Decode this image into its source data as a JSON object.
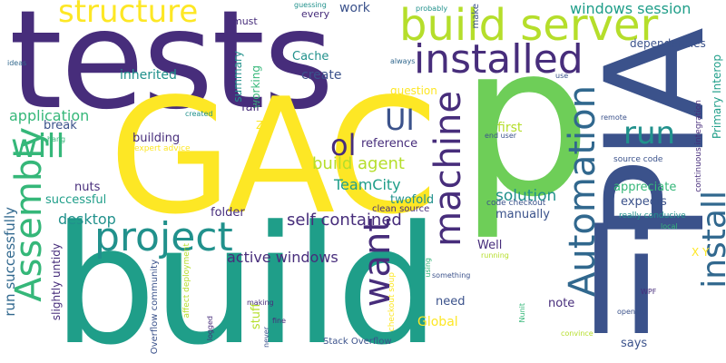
{
  "words": [
    {
      "text": "tests"
    },
    {
      "text": "build"
    },
    {
      "text": "GAC"
    },
    {
      "text": "p"
    },
    {
      "text": "PIA"
    },
    {
      "text": "li"
    },
    {
      "text": "build server"
    },
    {
      "text": "installed"
    },
    {
      "text": "structure"
    },
    {
      "text": "project"
    },
    {
      "text": "Automation"
    },
    {
      "text": "machine"
    },
    {
      "text": "want"
    },
    {
      "text": "install"
    },
    {
      "text": "Assembly"
    },
    {
      "text": "will"
    },
    {
      "text": "run"
    },
    {
      "text": "UI"
    },
    {
      "text": "ol"
    },
    {
      "text": "windows session"
    },
    {
      "text": "build agent"
    },
    {
      "text": "TeamCity"
    },
    {
      "text": "self contained"
    },
    {
      "text": "active windows"
    },
    {
      "text": "solution"
    },
    {
      "text": "reference"
    },
    {
      "text": "desktop"
    },
    {
      "text": "application"
    },
    {
      "text": "successful"
    },
    {
      "text": "run successfully"
    },
    {
      "text": "dependencies"
    },
    {
      "text": "Primary Interop"
    },
    {
      "text": "inherited"
    },
    {
      "text": "create"
    },
    {
      "text": "work"
    },
    {
      "text": "Cache"
    },
    {
      "text": "building"
    },
    {
      "text": "question"
    },
    {
      "text": "first"
    },
    {
      "text": "appreciate"
    },
    {
      "text": "expects"
    },
    {
      "text": "manually"
    },
    {
      "text": "folder"
    },
    {
      "text": "twofold"
    },
    {
      "text": "clean source"
    },
    {
      "text": "code checkout"
    },
    {
      "text": "Well"
    },
    {
      "text": "note"
    },
    {
      "text": "need"
    },
    {
      "text": "Global"
    },
    {
      "text": "says"
    },
    {
      "text": "expert advice"
    },
    {
      "text": "summary"
    },
    {
      "text": "working"
    },
    {
      "text": "fail"
    },
    {
      "text": "break"
    },
    {
      "text": "nuts"
    },
    {
      "text": "slightly untidy"
    },
    {
      "text": "stuff"
    },
    {
      "text": "Stack Overflow"
    },
    {
      "text": "Overflow community"
    },
    {
      "text": "affect deployment"
    },
    {
      "text": "checkout soup"
    },
    {
      "text": "must"
    },
    {
      "text": "every"
    },
    {
      "text": "make"
    },
    {
      "text": "source code"
    },
    {
      "text": "continuous integration"
    },
    {
      "text": "really conducive"
    },
    {
      "text": "end user"
    },
    {
      "text": "X Y"
    },
    {
      "text": "Z"
    },
    {
      "text": "ideas"
    },
    {
      "text": "always"
    },
    {
      "text": "guessing"
    },
    {
      "text": "probably"
    },
    {
      "text": "use"
    },
    {
      "text": "remote"
    },
    {
      "text": "created"
    },
    {
      "text": "hang"
    },
    {
      "text": "local"
    },
    {
      "text": "WPF"
    },
    {
      "text": "opening"
    },
    {
      "text": "convince"
    },
    {
      "text": "Nunit"
    },
    {
      "text": "running"
    },
    {
      "text": "something"
    },
    {
      "text": "using"
    },
    {
      "text": "making"
    },
    {
      "text": "logged"
    },
    {
      "text": "never"
    },
    {
      "text": "fine"
    }
  ]
}
